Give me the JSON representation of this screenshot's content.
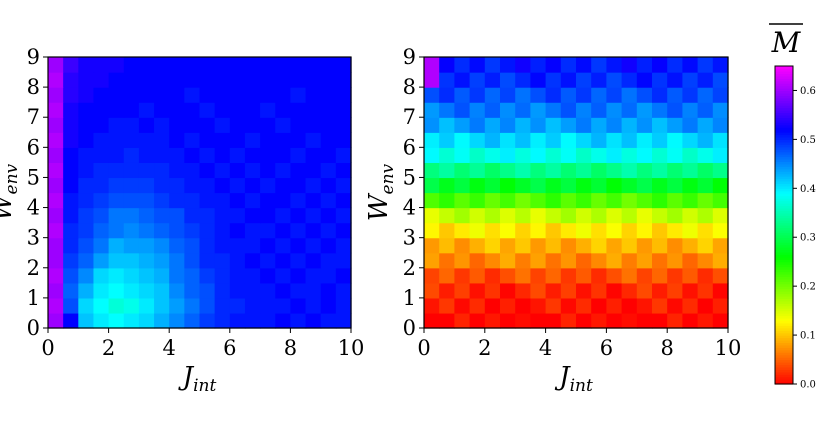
{
  "chart_data": [
    {
      "type": "heatmap",
      "title": "",
      "xlabel": {
        "main": "J",
        "sub": "int"
      },
      "ylabel": {
        "main": "W",
        "sub": "env"
      },
      "xlim": [
        0,
        10
      ],
      "ylim": [
        0,
        9
      ],
      "x_ticks": [
        "0",
        "2",
        "4",
        "6",
        "8",
        "10"
      ],
      "y_ticks": [
        "0",
        "1",
        "2",
        "3",
        "4",
        "5",
        "6",
        "7",
        "8",
        "9"
      ],
      "grid": false,
      "cell_grid": {
        "x_cells": 20,
        "y_cells": 18,
        "cell_size_x": 0.5,
        "cell_size_y": 0.5
      },
      "value_model_note": "Mean M per (J_int, W_env) cell read from colour; roughly uniform purple-blue (~0.52) everywhere, with a magenta strip (~0.6) at J_int < 0.5 and a cyan-blue patch (~0.38-0.44) for J_int in 1-4 and W_env below about 3.",
      "value_grid_rows_from_W0": [
        [
          0.6,
          0.52,
          0.42,
          0.4,
          0.39,
          0.4,
          0.41,
          0.43,
          0.45,
          0.47,
          0.49,
          0.5,
          0.51,
          0.51,
          0.51,
          0.52,
          0.51,
          0.52,
          0.51,
          0.51
        ],
        [
          0.61,
          0.48,
          0.41,
          0.39,
          0.37,
          0.38,
          0.4,
          0.42,
          0.44,
          0.46,
          0.48,
          0.5,
          0.5,
          0.51,
          0.51,
          0.51,
          0.52,
          0.51,
          0.52,
          0.51
        ],
        [
          0.6,
          0.47,
          0.43,
          0.4,
          0.39,
          0.4,
          0.41,
          0.42,
          0.45,
          0.47,
          0.48,
          0.5,
          0.51,
          0.51,
          0.51,
          0.52,
          0.51,
          0.51,
          0.52,
          0.51
        ],
        [
          0.61,
          0.48,
          0.45,
          0.41,
          0.4,
          0.41,
          0.42,
          0.43,
          0.46,
          0.47,
          0.49,
          0.5,
          0.51,
          0.51,
          0.52,
          0.51,
          0.52,
          0.51,
          0.51,
          0.52
        ],
        [
          0.6,
          0.49,
          0.47,
          0.44,
          0.42,
          0.42,
          0.43,
          0.44,
          0.46,
          0.48,
          0.5,
          0.5,
          0.51,
          0.52,
          0.51,
          0.52,
          0.51,
          0.52,
          0.51,
          0.51
        ],
        [
          0.6,
          0.5,
          0.48,
          0.46,
          0.43,
          0.44,
          0.44,
          0.45,
          0.47,
          0.48,
          0.5,
          0.51,
          0.51,
          0.51,
          0.52,
          0.51,
          0.52,
          0.51,
          0.52,
          0.51
        ],
        [
          0.61,
          0.5,
          0.49,
          0.47,
          0.46,
          0.45,
          0.46,
          0.47,
          0.48,
          0.49,
          0.5,
          0.51,
          0.52,
          0.51,
          0.51,
          0.52,
          0.51,
          0.52,
          0.51,
          0.52
        ],
        [
          0.6,
          0.51,
          0.49,
          0.48,
          0.46,
          0.46,
          0.47,
          0.48,
          0.48,
          0.5,
          0.5,
          0.51,
          0.51,
          0.52,
          0.52,
          0.51,
          0.52,
          0.51,
          0.52,
          0.51
        ],
        [
          0.61,
          0.51,
          0.5,
          0.49,
          0.48,
          0.48,
          0.48,
          0.49,
          0.5,
          0.5,
          0.51,
          0.51,
          0.52,
          0.51,
          0.52,
          0.52,
          0.51,
          0.52,
          0.51,
          0.52
        ],
        [
          0.6,
          0.52,
          0.5,
          0.5,
          0.49,
          0.49,
          0.49,
          0.5,
          0.5,
          0.51,
          0.51,
          0.52,
          0.51,
          0.52,
          0.51,
          0.52,
          0.52,
          0.51,
          0.52,
          0.51
        ],
        [
          0.61,
          0.52,
          0.51,
          0.5,
          0.5,
          0.5,
          0.5,
          0.5,
          0.51,
          0.51,
          0.52,
          0.51,
          0.52,
          0.51,
          0.52,
          0.51,
          0.52,
          0.52,
          0.51,
          0.52
        ],
        [
          0.6,
          0.52,
          0.51,
          0.51,
          0.51,
          0.5,
          0.51,
          0.51,
          0.51,
          0.52,
          0.51,
          0.52,
          0.51,
          0.52,
          0.52,
          0.52,
          0.51,
          0.52,
          0.52,
          0.51
        ],
        [
          0.61,
          0.53,
          0.52,
          0.51,
          0.51,
          0.51,
          0.51,
          0.51,
          0.52,
          0.51,
          0.52,
          0.52,
          0.52,
          0.51,
          0.52,
          0.52,
          0.52,
          0.51,
          0.52,
          0.52
        ],
        [
          0.6,
          0.53,
          0.52,
          0.52,
          0.51,
          0.51,
          0.52,
          0.51,
          0.52,
          0.52,
          0.52,
          0.51,
          0.52,
          0.52,
          0.52,
          0.51,
          0.52,
          0.52,
          0.52,
          0.52
        ],
        [
          0.61,
          0.53,
          0.52,
          0.52,
          0.52,
          0.52,
          0.51,
          0.52,
          0.52,
          0.52,
          0.51,
          0.52,
          0.52,
          0.52,
          0.51,
          0.52,
          0.52,
          0.52,
          0.52,
          0.52
        ],
        [
          0.6,
          0.54,
          0.53,
          0.52,
          0.52,
          0.52,
          0.52,
          0.52,
          0.52,
          0.51,
          0.52,
          0.52,
          0.52,
          0.52,
          0.52,
          0.52,
          0.51,
          0.52,
          0.52,
          0.52
        ],
        [
          0.61,
          0.54,
          0.53,
          0.53,
          0.52,
          0.52,
          0.52,
          0.52,
          0.52,
          0.52,
          0.52,
          0.52,
          0.52,
          0.52,
          0.52,
          0.52,
          0.52,
          0.52,
          0.52,
          0.52
        ],
        [
          0.6,
          0.55,
          0.53,
          0.53,
          0.53,
          0.52,
          0.52,
          0.52,
          0.52,
          0.52,
          0.52,
          0.52,
          0.52,
          0.52,
          0.52,
          0.52,
          0.52,
          0.52,
          0.52,
          0.52
        ]
      ]
    },
    {
      "type": "heatmap",
      "title": "",
      "xlabel": {
        "main": "J",
        "sub": "int"
      },
      "ylabel": {
        "main": "W",
        "sub": "env"
      },
      "xlim": [
        0,
        10
      ],
      "ylim": [
        0,
        9
      ],
      "x_ticks": [
        "0",
        "2",
        "4",
        "6",
        "8",
        "10"
      ],
      "y_ticks": [
        "0",
        "1",
        "2",
        "3",
        "4",
        "5",
        "6",
        "7",
        "8",
        "9"
      ],
      "grid": false,
      "cell_grid": {
        "x_cells": 20,
        "y_cells": 18,
        "cell_size_x": 0.5,
        "cell_size_y": 0.5
      },
      "value_model_note": "Mean M increases with W_env and is nearly independent of J_int: red (~0.0) at W_env 0-1.5, orange/yellow (~0.1-0.15) near W_env 2-3, green (~0.3) near W_env 4-5, cyan (~0.4) near W_env 5.5-6.5, blue (~0.5) above W_env 7; magenta (~0.6) at the J_int < 0.5 column for W_env above 8.",
      "value_profile_by_W_row": [
        0.0,
        0.01,
        0.02,
        0.04,
        0.07,
        0.09,
        0.12,
        0.16,
        0.22,
        0.28,
        0.33,
        0.38,
        0.41,
        0.44,
        0.46,
        0.48,
        0.5,
        0.51
      ],
      "left_column_override": {
        "x_cell": 0,
        "rows_from_W": [
          16,
          17
        ],
        "value": 0.61
      }
    }
  ],
  "colorbar": {
    "title": "M",
    "title_overline": true,
    "range": [
      0.0,
      0.65
    ],
    "ticks": [
      "0.0",
      "0.1",
      "0.2",
      "0.3",
      "0.4",
      "0.5",
      "0.6"
    ],
    "colormap": "gist_rainbow_r"
  }
}
